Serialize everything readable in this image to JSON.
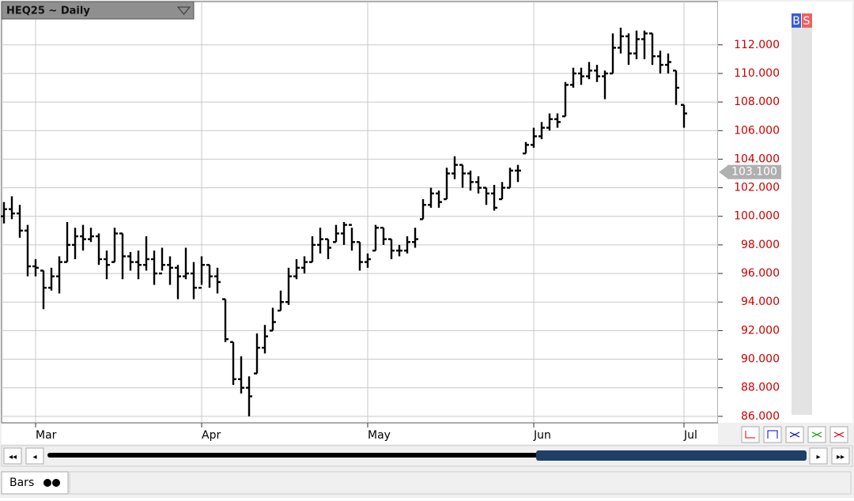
{
  "chart_data": {
    "type": "ohlc",
    "title": "HEQ25 ~ Daily",
    "categories": [
      null,
      null,
      null,
      null,
      "Mar",
      null,
      null,
      null,
      null,
      null,
      null,
      null,
      null,
      null,
      null,
      null,
      null,
      null,
      null,
      null,
      null,
      null,
      null,
      null,
      null,
      "Apr",
      null,
      null,
      null,
      null,
      null,
      null,
      null,
      null,
      null,
      null,
      null,
      null,
      null,
      null,
      null,
      null,
      null,
      null,
      null,
      null,
      "May",
      null,
      null,
      null,
      null,
      null,
      null,
      null,
      null,
      null,
      null,
      null,
      null,
      null,
      null,
      null,
      null,
      null,
      null,
      null,
      null,
      "Jun",
      null,
      null,
      null,
      null,
      null,
      null,
      null,
      null,
      null,
      null,
      null,
      null,
      null,
      null,
      null,
      null,
      null,
      null,
      "Jul"
    ],
    "open": [
      100,
      100.5,
      100.2,
      99,
      96.5,
      96.2,
      95,
      95.8,
      96.8,
      98,
      98.6,
      98.4,
      98.6,
      97,
      96.8,
      98.8,
      97.2,
      96.8,
      96.6,
      97,
      96,
      96.6,
      96.4,
      95.8,
      96,
      95,
      96.6,
      95.8,
      94.2,
      91.2,
      88.6,
      88,
      89,
      90.8,
      92,
      93.4,
      94,
      95.8,
      96.4,
      96.8,
      98,
      98.4,
      98.2,
      98.8,
      99.4,
      98.2,
      96.8,
      97.6,
      99.2,
      98.4,
      97.6,
      97.6,
      98.2,
      99.8,
      100.8,
      101.6,
      101.2,
      103,
      103.6,
      103,
      102.4,
      102,
      101.6,
      101.2,
      102,
      103.2,
      104.4,
      105,
      105.6,
      106.2,
      106.8,
      107,
      109.2,
      110,
      109.8,
      110.2,
      109.8,
      110,
      111.8,
      112.6,
      111.4,
      112.4,
      112.8,
      111.2,
      110.6,
      110.2,
      107.8
    ],
    "high": [
      101,
      101.4,
      100.8,
      99.4,
      97,
      96.2,
      96.4,
      97.2,
      99.6,
      99.2,
      99.4,
      99.2,
      98.8,
      97.6,
      99.2,
      98.8,
      97.5,
      97.6,
      98.6,
      97.6,
      97.8,
      97.2,
      96.6,
      97.8,
      96.8,
      97.2,
      96.6,
      96.4,
      94.2,
      91.2,
      90.2,
      88.8,
      91.8,
      92.4,
      93.6,
      94.8,
      96.4,
      97,
      97.2,
      98.6,
      99.2,
      98.4,
      99.4,
      99.6,
      99.2,
      98.2,
      97.4,
      99.4,
      99.2,
      98.4,
      98,
      98.6,
      99.2,
      101.2,
      102,
      101.8,
      103.4,
      104.2,
      103.6,
      103.2,
      102.8,
      102,
      102.2,
      102.4,
      103.4,
      103.6,
      105.2,
      106.2,
      106.6,
      107.2,
      107.2,
      109.4,
      110.4,
      110.4,
      110.8,
      110.6,
      110.2,
      112.8,
      113.2,
      112.8,
      113,
      113,
      112.8,
      111.6,
      111.4,
      110.2,
      107.8
    ],
    "low": [
      99.5,
      99.8,
      98.5,
      95.8,
      95.8,
      93.5,
      94.8,
      94.6,
      96.8,
      97,
      97.6,
      98.2,
      96.6,
      95.6,
      96.8,
      95.6,
      96.2,
      95.6,
      96.2,
      95.2,
      96.2,
      95.2,
      94.2,
      95.6,
      94.2,
      95.2,
      95,
      94.6,
      91.2,
      88.2,
      87.6,
      86,
      89,
      90.4,
      92,
      93.4,
      93.8,
      95.6,
      96,
      96.8,
      97.4,
      97,
      98.2,
      98,
      97.6,
      96.2,
      96.4,
      97.6,
      98,
      97,
      97.2,
      97.4,
      97.8,
      99.8,
      100.6,
      100.6,
      101.2,
      102.6,
      102,
      101.8,
      101.6,
      100.8,
      100.4,
      101.2,
      102,
      102.4,
      104.4,
      104.8,
      105.4,
      106,
      106.2,
      107,
      109,
      109.2,
      109.6,
      109.4,
      108.2,
      110,
      111.4,
      110.6,
      111,
      111,
      110.6,
      110,
      110,
      107.8,
      106.2
    ],
    "close": [
      100.5,
      100.2,
      99,
      96.5,
      96.4,
      95,
      95.8,
      96.8,
      98,
      98.6,
      98.4,
      98.6,
      97,
      96.6,
      98.8,
      97.2,
      96.8,
      96.6,
      97,
      96,
      96.6,
      96.4,
      95.8,
      96,
      95,
      96.6,
      95.8,
      95.4,
      91.4,
      88.6,
      88,
      87.4,
      90.8,
      91.6,
      92.6,
      94,
      95.8,
      96.4,
      96.8,
      98,
      98.4,
      97.8,
      98.8,
      99.4,
      98.2,
      96.8,
      97,
      99.2,
      98.4,
      97.6,
      97.6,
      98.2,
      98.4,
      100.8,
      101.6,
      101,
      103,
      103.6,
      103,
      102.4,
      102,
      101.6,
      100.6,
      102,
      103.2,
      103.2,
      105,
      105.6,
      106.2,
      106.8,
      106.6,
      109.2,
      110,
      109.8,
      110.2,
      109.8,
      110,
      111.8,
      112.6,
      111.4,
      112.4,
      112.8,
      111.2,
      110.6,
      110.8,
      109,
      107.2
    ],
    "color": "#000000",
    "ylim": [
      85.55,
      115.03
    ],
    "yticks": [
      {
        "value": 86,
        "label": "86.000"
      },
      {
        "value": 88,
        "label": "88.000"
      },
      {
        "value": 90,
        "label": "90.000"
      },
      {
        "value": 92,
        "label": "92.000"
      },
      {
        "value": 94,
        "label": "94.000"
      },
      {
        "value": 96,
        "label": "96.000"
      },
      {
        "value": 98,
        "label": "98.000"
      },
      {
        "value": 100,
        "label": "100.000"
      },
      {
        "value": 102,
        "label": "102.000"
      },
      {
        "value": 104,
        "label": "104.000"
      },
      {
        "value": 106,
        "label": "106.000"
      },
      {
        "value": 108,
        "label": "108.000"
      },
      {
        "value": 110,
        "label": "110.000"
      },
      {
        "value": 112,
        "label": "112.000"
      }
    ],
    "price_marker": {
      "value": 103.1,
      "label": "103.100"
    },
    "grid": true
  },
  "buttons": {
    "buy": "B",
    "sell": "S"
  },
  "tab": "Bars"
}
